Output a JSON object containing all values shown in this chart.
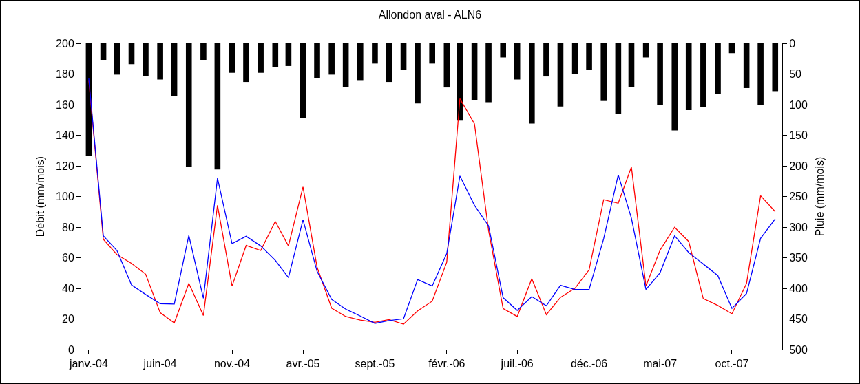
{
  "chart_data": {
    "type": "line",
    "title": "Allondon aval - ALN6",
    "ylabel": "Débit (mm/mois)",
    "y2label": "Pluie (mm/mois)",
    "x": [
      "2004-01",
      "2004-02",
      "2004-03",
      "2004-04",
      "2004-05",
      "2004-06",
      "2004-07",
      "2004-08",
      "2004-09",
      "2004-10",
      "2004-11",
      "2004-12",
      "2005-01",
      "2005-02",
      "2005-03",
      "2005-04",
      "2005-05",
      "2005-06",
      "2005-07",
      "2005-08",
      "2005-09",
      "2005-10",
      "2005-11",
      "2005-12",
      "2006-01",
      "2006-02",
      "2006-03",
      "2006-04",
      "2006-05",
      "2006-06",
      "2006-07",
      "2006-08",
      "2006-09",
      "2006-10",
      "2006-11",
      "2006-12",
      "2007-01",
      "2007-02",
      "2007-03",
      "2007-04",
      "2007-05",
      "2007-06",
      "2007-07",
      "2007-08",
      "2007-09",
      "2007-10",
      "2007-11",
      "2007-12",
      "2008-01"
    ],
    "series": [
      {
        "type": "bar",
        "axis": "y2",
        "color": "#000000",
        "values": [
          184,
          27,
          51,
          34,
          53,
          59,
          86,
          201,
          27,
          206,
          48,
          63,
          48,
          39,
          37,
          122,
          57,
          51,
          71,
          60,
          33,
          63,
          43,
          98,
          33,
          72,
          126,
          93,
          96,
          23,
          59,
          131,
          54,
          103,
          50,
          43,
          94,
          115,
          71,
          23,
          101,
          142,
          109,
          104,
          83,
          16,
          73,
          101,
          78
        ]
      },
      {
        "color": "#ff0000",
        "values": [
          176,
          72,
          62,
          56.3,
          49.3,
          24.1,
          17.4,
          43.3,
          22.3,
          94.2,
          41.5,
          68,
          64.7,
          83.7,
          67.7,
          106.2,
          53.8,
          27.1,
          21.6,
          19.3,
          17.8,
          19.6,
          16.6,
          25.3,
          31.6,
          57.1,
          163.9,
          147.4,
          77.8,
          26.8,
          21.6,
          46.3,
          22.8,
          34.1,
          40.1,
          52.1,
          97.9,
          95.6,
          119.2,
          41.6,
          64.9,
          79.9,
          70.6,
          33.3,
          28.8,
          23.4,
          43.1,
          100.5,
          90.1
        ]
      },
      {
        "color": "#0000ff",
        "values": [
          177,
          74.3,
          64.7,
          42.2,
          36,
          30,
          29.7,
          74.5,
          33.5,
          112,
          69.2,
          74,
          67.7,
          58.3,
          47,
          84.8,
          51.1,
          32.8,
          26.4,
          21.9,
          17.1,
          18.9,
          20.1,
          45.8,
          41.5,
          62.8,
          113.4,
          94.2,
          80.8,
          33.9,
          25.6,
          34.6,
          28.6,
          42,
          39.3,
          39.3,
          72.4,
          114.1,
          85.9,
          39.3,
          50.2,
          74.3,
          63.4,
          55.9,
          48.3,
          26.9,
          36.6,
          72.7,
          85.3
        ]
      }
    ],
    "xlim": [
      "2003-12-16",
      "2008-01-16"
    ],
    "xticks": [
      {
        "value": "2004-01",
        "label": "janv.-04"
      },
      {
        "value": "2004-06",
        "label": "juin-04"
      },
      {
        "value": "2004-11",
        "label": "nov.-04"
      },
      {
        "value": "2005-04",
        "label": "avr.-05"
      },
      {
        "value": "2005-09",
        "label": "sept.-05"
      },
      {
        "value": "2006-02",
        "label": "févr.-06"
      },
      {
        "value": "2006-07",
        "label": "juil.-06"
      },
      {
        "value": "2006-12",
        "label": "déc.-06"
      },
      {
        "value": "2007-05",
        "label": "mai-07"
      },
      {
        "value": "2007-10",
        "label": "oct.-07"
      }
    ],
    "ylim": [
      0,
      200
    ],
    "yticks": [
      0,
      20,
      40,
      60,
      80,
      100,
      120,
      140,
      160,
      180,
      200
    ],
    "y2lim": [
      500,
      0
    ],
    "y2ticks": [
      0,
      50,
      100,
      150,
      200,
      250,
      300,
      350,
      400,
      450,
      500
    ],
    "grid": false,
    "line_style": "solid",
    "marker": "none"
  }
}
